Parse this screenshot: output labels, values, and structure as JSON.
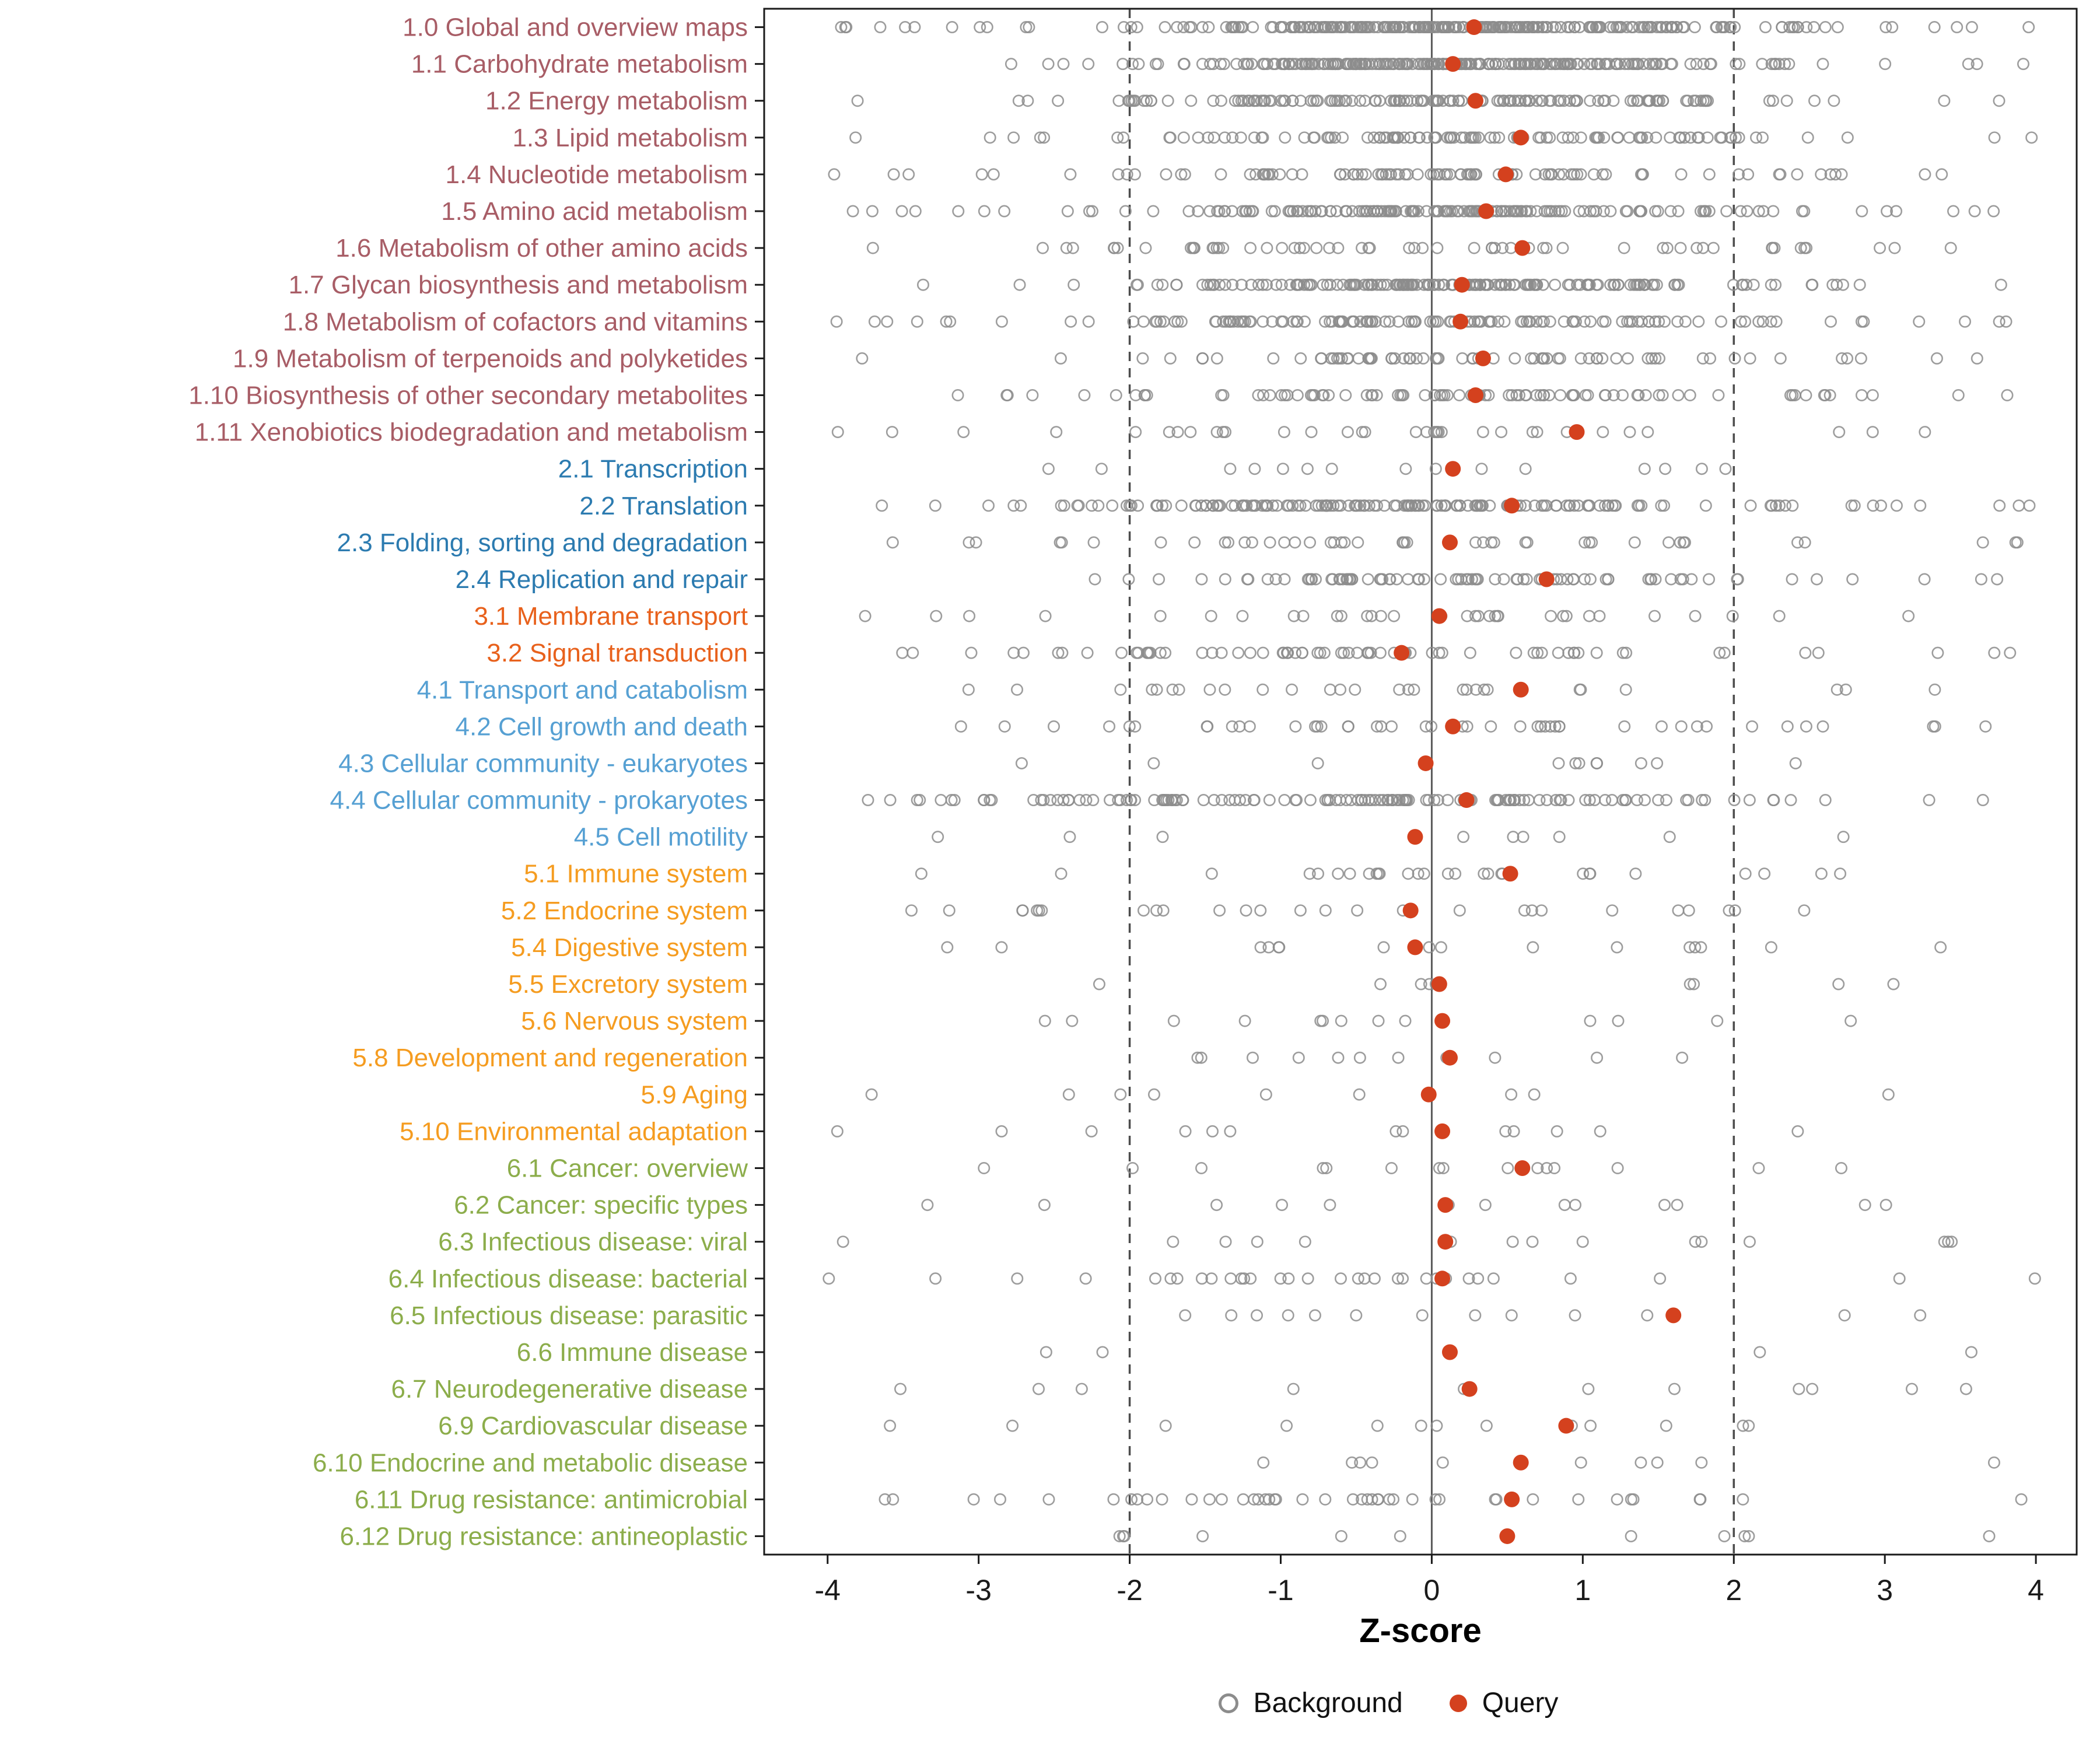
{
  "chart_data": {
    "type": "scatter",
    "title": "",
    "xlabel": "Z-score",
    "x_ticks": [
      -4,
      -3,
      -2,
      -1,
      0,
      1,
      2,
      3,
      4
    ],
    "x_range": [
      -4.42,
      4.27
    ],
    "ref_lines": {
      "solid": [
        0
      ],
      "dashed": [
        -2,
        2
      ]
    },
    "colors": {
      "background_point": "#8C8C8C",
      "query_point": "#D4411E",
      "axis_text": "#1A1A1A",
      "panel_border": "#1A1A1A",
      "ref_line": "#4D4D4D",
      "zero_line": "#5A5A5A",
      "groups": {
        "metabolism": "#A85D66",
        "genetic_information_processing": "#2C7BB0",
        "environmental_information_processing": "#E8611C",
        "cellular_processes": "#56A0D3",
        "organismal_systems": "#F59C20",
        "human_diseases": "#8CAD4B"
      }
    },
    "legend": [
      {
        "label": "Background",
        "marker": "open"
      },
      {
        "label": "Query",
        "marker": "filled"
      }
    ],
    "rows": [
      {
        "label": "1.0 Global and overview maps",
        "group": "metabolism",
        "query": 0.28,
        "bg": {
          "n": 260,
          "mean": 0.2,
          "sd": 1.1,
          "out": 0.15,
          "seed": 1
        }
      },
      {
        "label": "1.1 Carbohydrate metabolism",
        "group": "metabolism",
        "query": 0.14,
        "bg": {
          "n": 240,
          "mean": 0.0,
          "sd": 1.0,
          "out": 0.12,
          "seed": 2
        }
      },
      {
        "label": "1.2 Energy metabolism",
        "group": "metabolism",
        "query": 0.29,
        "bg": {
          "n": 150,
          "mean": 0.0,
          "sd": 1.2,
          "out": 0.15,
          "seed": 3
        }
      },
      {
        "label": "1.3 Lipid metabolism",
        "group": "metabolism",
        "query": 0.59,
        "bg": {
          "n": 110,
          "mean": 0.2,
          "sd": 1.2,
          "out": 0.15,
          "seed": 4
        }
      },
      {
        "label": "1.4 Nucleotide metabolism",
        "group": "metabolism",
        "query": 0.49,
        "bg": {
          "n": 95,
          "mean": 0.1,
          "sd": 1.3,
          "out": 0.15,
          "seed": 5
        }
      },
      {
        "label": "1.5 Amino acid metabolism",
        "group": "metabolism",
        "query": 0.36,
        "bg": {
          "n": 170,
          "mean": 0.0,
          "sd": 1.1,
          "out": 0.12,
          "seed": 6
        }
      },
      {
        "label": "1.6 Metabolism of other amino acids",
        "group": "metabolism",
        "query": 0.6,
        "bg": {
          "n": 60,
          "mean": 0.1,
          "sd": 1.3,
          "out": 0.2,
          "seed": 7
        }
      },
      {
        "label": "1.7 Glycan biosynthesis and metabolism",
        "group": "metabolism",
        "query": 0.2,
        "bg": {
          "n": 170,
          "mean": 0.2,
          "sd": 1.0,
          "out": 0.12,
          "seed": 8
        }
      },
      {
        "label": "1.8 Metabolism of cofactors and vitamins",
        "group": "metabolism",
        "query": 0.19,
        "bg": {
          "n": 130,
          "mean": 0.0,
          "sd": 1.2,
          "out": 0.18,
          "seed": 9
        }
      },
      {
        "label": "1.9 Metabolism of terpenoids and polyketides",
        "group": "metabolism",
        "query": 0.34,
        "bg": {
          "n": 70,
          "mean": 0.3,
          "sd": 1.2,
          "out": 0.2,
          "seed": 10
        }
      },
      {
        "label": "1.10 Biosynthesis of other secondary metabolites",
        "group": "metabolism",
        "query": 0.29,
        "bg": {
          "n": 90,
          "mean": 0.2,
          "sd": 1.2,
          "out": 0.18,
          "seed": 11
        }
      },
      {
        "label": "1.11 Xenobiotics biodegradation and metabolism",
        "group": "metabolism",
        "query": 0.96,
        "bg": {
          "n": 34,
          "mean": 0.2,
          "sd": 1.5,
          "out": 0.3,
          "seed": 12
        }
      },
      {
        "label": "2.1 Transcription",
        "group": "genetic_information_processing",
        "query": 0.14,
        "bg": {
          "n": 16,
          "mean": 0.3,
          "sd": 1.4,
          "out": 0.3,
          "seed": 13
        }
      },
      {
        "label": "2.2 Translation",
        "group": "genetic_information_processing",
        "query": 0.53,
        "bg": {
          "n": 160,
          "mean": -0.4,
          "sd": 1.2,
          "out": 0.1,
          "seed": 14
        }
      },
      {
        "label": "2.3 Folding, sorting and degradation",
        "group": "genetic_information_processing",
        "query": 0.12,
        "bg": {
          "n": 45,
          "mean": 0.1,
          "sd": 1.4,
          "out": 0.25,
          "seed": 15
        }
      },
      {
        "label": "2.4 Replication and repair",
        "group": "genetic_information_processing",
        "query": 0.76,
        "bg": {
          "n": 85,
          "mean": 0.2,
          "sd": 1.2,
          "out": 0.15,
          "seed": 16
        }
      },
      {
        "label": "3.1 Membrane transport",
        "group": "environmental_information_processing",
        "query": 0.05,
        "bg": {
          "n": 34,
          "mean": -0.2,
          "sd": 1.5,
          "out": 0.25,
          "seed": 17
        }
      },
      {
        "label": "3.2 Signal transduction",
        "group": "environmental_information_processing",
        "query": -0.2,
        "bg": {
          "n": 70,
          "mean": -0.6,
          "sd": 1.3,
          "out": 0.2,
          "seed": 18
        }
      },
      {
        "label": "4.1 Transport and catabolism",
        "group": "cellular_processes",
        "query": 0.59,
        "bg": {
          "n": 28,
          "mean": 0.3,
          "sd": 1.3,
          "out": 0.25,
          "seed": 19
        }
      },
      {
        "label": "4.2 Cell growth and death",
        "group": "cellular_processes",
        "query": 0.14,
        "bg": {
          "n": 45,
          "mean": 0.1,
          "sd": 1.3,
          "out": 0.2,
          "seed": 20
        }
      },
      {
        "label": "4.3 Cellular community - eukaryotes",
        "group": "cellular_processes",
        "query": -0.04,
        "bg": {
          "n": 12,
          "mean": 0.3,
          "sd": 1.6,
          "out": 0.3,
          "seed": 21
        }
      },
      {
        "label": "4.4 Cellular community - prokaryotes",
        "group": "cellular_processes",
        "query": 0.23,
        "bg": {
          "n": 140,
          "mean": -0.5,
          "sd": 1.3,
          "out": 0.15,
          "seed": 22
        }
      },
      {
        "label": "4.5 Cell motility",
        "group": "cellular_processes",
        "query": -0.11,
        "bg": {
          "n": 9,
          "mean": 0.0,
          "sd": 1.8,
          "out": 0.3,
          "seed": 23
        }
      },
      {
        "label": "5.1 Immune system",
        "group": "organismal_systems",
        "query": 0.52,
        "bg": {
          "n": 28,
          "mean": 0.0,
          "sd": 1.5,
          "out": 0.25,
          "seed": 24
        }
      },
      {
        "label": "5.2 Endocrine system",
        "group": "organismal_systems",
        "query": -0.14,
        "bg": {
          "n": 28,
          "mean": -0.5,
          "sd": 1.5,
          "out": 0.25,
          "seed": 25
        }
      },
      {
        "label": "5.4 Digestive system",
        "group": "organismal_systems",
        "query": -0.11,
        "bg": {
          "n": 16,
          "mean": -0.3,
          "sd": 1.6,
          "out": 0.3,
          "seed": 26
        }
      },
      {
        "label": "5.5 Excretory system",
        "group": "organismal_systems",
        "query": 0.05,
        "bg": {
          "n": 9,
          "mean": 0.3,
          "sd": 1.5,
          "out": 0.3,
          "seed": 27
        }
      },
      {
        "label": "5.6 Nervous system",
        "group": "organismal_systems",
        "query": 0.07,
        "bg": {
          "n": 13,
          "mean": 0.2,
          "sd": 1.5,
          "out": 0.3,
          "seed": 28
        }
      },
      {
        "label": "5.8 Development and regeneration",
        "group": "organismal_systems",
        "query": 0.12,
        "bg": {
          "n": 11,
          "mean": 0.4,
          "sd": 1.4,
          "out": 0.3,
          "seed": 29
        }
      },
      {
        "label": "5.9 Aging",
        "group": "organismal_systems",
        "query": -0.02,
        "bg": {
          "n": 9,
          "mean": 0.2,
          "sd": 1.6,
          "out": 0.3,
          "seed": 30
        }
      },
      {
        "label": "5.10 Environmental adaptation",
        "group": "organismal_systems",
        "query": 0.07,
        "bg": {
          "n": 13,
          "mean": -0.2,
          "sd": 1.6,
          "out": 0.3,
          "seed": 31
        }
      },
      {
        "label": "6.1 Cancer: overview",
        "group": "human_diseases",
        "query": 0.6,
        "bg": {
          "n": 16,
          "mean": 0.3,
          "sd": 1.4,
          "out": 0.3,
          "seed": 32
        }
      },
      {
        "label": "6.2 Cancer: specific types",
        "group": "human_diseases",
        "query": 0.09,
        "bg": {
          "n": 13,
          "mean": 0.4,
          "sd": 1.5,
          "out": 0.3,
          "seed": 33
        }
      },
      {
        "label": "6.3 Infectious disease: viral",
        "group": "human_diseases",
        "query": 0.09,
        "bg": {
          "n": 15,
          "mean": 0.3,
          "sd": 1.5,
          "out": 0.3,
          "seed": 34
        }
      },
      {
        "label": "6.4 Infectious disease: bacterial",
        "group": "human_diseases",
        "query": 0.07,
        "bg": {
          "n": 32,
          "mean": -0.3,
          "sd": 1.5,
          "out": 0.25,
          "seed": 35
        }
      },
      {
        "label": "6.5 Infectious disease: parasitic",
        "group": "human_diseases",
        "query": 1.6,
        "bg": {
          "n": 13,
          "mean": 0.5,
          "sd": 1.6,
          "out": 0.3,
          "seed": 36
        }
      },
      {
        "label": "6.6 Immune disease",
        "group": "human_diseases",
        "query": 0.12,
        "bg": {
          "n": 4,
          "mean": -1.0,
          "sd": 2.0,
          "out": 0.4,
          "seed": 37
        }
      },
      {
        "label": "6.7 Neurodegenerative disease",
        "group": "human_diseases",
        "query": 0.25,
        "bg": {
          "n": 11,
          "mean": 0.1,
          "sd": 1.6,
          "out": 0.3,
          "seed": 38
        }
      },
      {
        "label": "6.9 Cardiovascular disease",
        "group": "human_diseases",
        "query": 0.89,
        "bg": {
          "n": 13,
          "mean": 0.3,
          "sd": 1.5,
          "out": 0.3,
          "seed": 39
        }
      },
      {
        "label": "6.10 Endocrine and metabolic disease",
        "group": "human_diseases",
        "query": 0.59,
        "bg": {
          "n": 11,
          "mean": 0.3,
          "sd": 1.5,
          "out": 0.3,
          "seed": 40
        }
      },
      {
        "label": "6.11 Drug resistance: antimicrobial",
        "group": "human_diseases",
        "query": 0.53,
        "bg": {
          "n": 45,
          "mean": -0.5,
          "sd": 1.4,
          "out": 0.2,
          "seed": 41
        }
      },
      {
        "label": "6.12 Drug resistance: antineoplastic",
        "group": "human_diseases",
        "query": 0.5,
        "bg": {
          "n": 11,
          "mean": 0.2,
          "sd": 1.5,
          "out": 0.3,
          "seed": 42
        }
      }
    ]
  }
}
